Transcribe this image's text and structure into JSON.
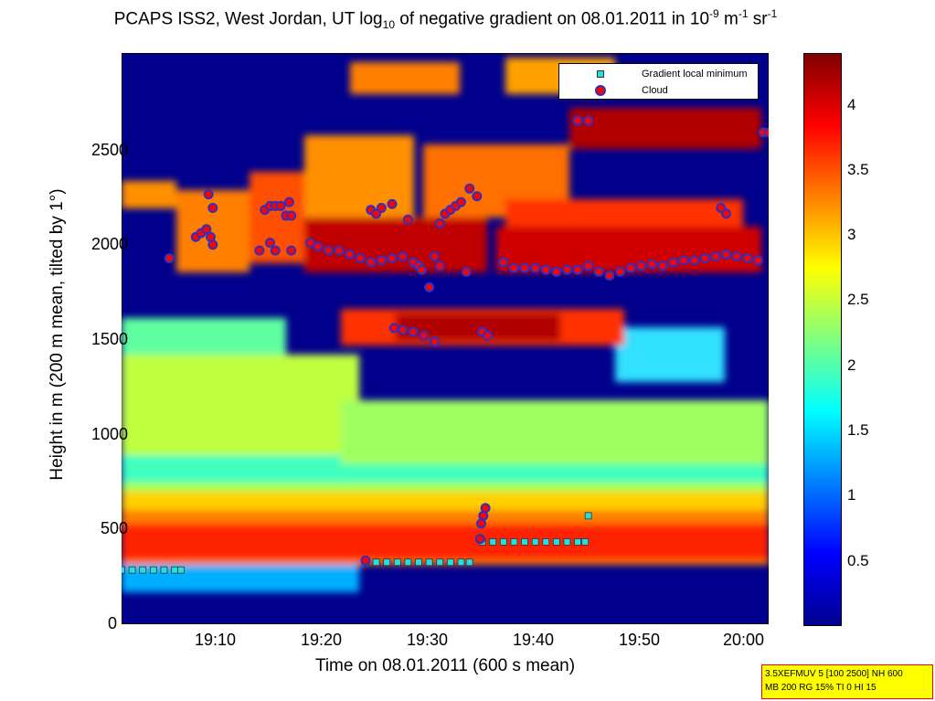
{
  "title": {
    "pre": "PCAPS ISS2, West Jordan, UT log",
    "sub": "10",
    "mid": " of negative gradient on 08.01.2011 in 10",
    "sup1": "-9",
    "unit1": " m",
    "sup2": "-1",
    "unit2": " sr",
    "sup3": "-1"
  },
  "info_box": {
    "line1": "3.5XEFMUV 5 [100 2500] NH 600",
    "line2": "MB 200 RG 15% TI 0 HI 15"
  },
  "colors": {
    "background_low": "#00008c",
    "gradient_minimum_marker": "#22e0e0",
    "cloud_marker_fill": "#ff0000",
    "cloud_marker_edge": "#3030c0"
  },
  "chart_data": {
    "type": "heatmap",
    "xlabel": "Time on 08.01.2011 (600 s mean)",
    "ylabel": "Height in m (200 m mean, tilted by 1°)",
    "x_ticks": [
      "19:10",
      "19:20",
      "19:30",
      "19:40",
      "19:50",
      "20:00"
    ],
    "x_tick_minutes": [
      10,
      20,
      30,
      40,
      50,
      60
    ],
    "xlim_minutes": [
      1.0,
      62.0
    ],
    "y_ticks": [
      0,
      500,
      1000,
      1500,
      2000,
      2500
    ],
    "ylim": [
      0,
      2950
    ],
    "colorbar": {
      "ticks": [
        "0.5",
        "1",
        "1.5",
        "2",
        "2.5",
        "3",
        "3.5",
        "4"
      ],
      "tick_values": [
        0.5,
        1,
        1.5,
        2,
        2.5,
        3,
        3.5,
        4
      ],
      "range": [
        0,
        4.4
      ],
      "colormap": "jet"
    },
    "grid": false,
    "legend_placement": "top-right",
    "legend": [
      "Gradient local minimum",
      "Cloud"
    ],
    "series": [
      {
        "name": "Gradient local minimum",
        "marker": "square",
        "points": [
          {
            "x": 1.0,
            "y": 280
          },
          {
            "x": 2.0,
            "y": 280
          },
          {
            "x": 3.0,
            "y": 280
          },
          {
            "x": 4.0,
            "y": 280
          },
          {
            "x": 5.0,
            "y": 280
          },
          {
            "x": 6.0,
            "y": 280
          },
          {
            "x": 6.6,
            "y": 280
          },
          {
            "x": 24.0,
            "y": 320
          },
          {
            "x": 25.0,
            "y": 320
          },
          {
            "x": 26.0,
            "y": 320
          },
          {
            "x": 27.0,
            "y": 320
          },
          {
            "x": 28.0,
            "y": 320
          },
          {
            "x": 29.0,
            "y": 320
          },
          {
            "x": 30.0,
            "y": 320
          },
          {
            "x": 31.0,
            "y": 320
          },
          {
            "x": 32.0,
            "y": 320
          },
          {
            "x": 33.0,
            "y": 320
          },
          {
            "x": 33.8,
            "y": 320
          },
          {
            "x": 35.0,
            "y": 425
          },
          {
            "x": 36.0,
            "y": 425
          },
          {
            "x": 37.0,
            "y": 425
          },
          {
            "x": 38.0,
            "y": 425
          },
          {
            "x": 39.0,
            "y": 425
          },
          {
            "x": 40.0,
            "y": 425
          },
          {
            "x": 41.0,
            "y": 425
          },
          {
            "x": 42.0,
            "y": 425
          },
          {
            "x": 43.0,
            "y": 425
          },
          {
            "x": 44.0,
            "y": 425
          },
          {
            "x": 44.7,
            "y": 425
          },
          {
            "x": 45.0,
            "y": 560
          }
        ]
      },
      {
        "name": "Cloud",
        "marker": "circle",
        "points": [
          {
            "x": 5.5,
            "y": 1890
          },
          {
            "x": 8.0,
            "y": 2000
          },
          {
            "x": 8.5,
            "y": 2020
          },
          {
            "x": 9.0,
            "y": 2040
          },
          {
            "x": 9.4,
            "y": 2000
          },
          {
            "x": 9.6,
            "y": 1960
          },
          {
            "x": 9.2,
            "y": 2220
          },
          {
            "x": 9.6,
            "y": 2150
          },
          {
            "x": 14.0,
            "y": 1930
          },
          {
            "x": 14.5,
            "y": 2140
          },
          {
            "x": 15.0,
            "y": 2160
          },
          {
            "x": 15.5,
            "y": 2160
          },
          {
            "x": 16.0,
            "y": 2160
          },
          {
            "x": 15.0,
            "y": 1970
          },
          {
            "x": 15.5,
            "y": 1930
          },
          {
            "x": 16.5,
            "y": 2110
          },
          {
            "x": 17.0,
            "y": 2110
          },
          {
            "x": 16.8,
            "y": 2180
          },
          {
            "x": 17.0,
            "y": 1930
          },
          {
            "x": 18.8,
            "y": 1970
          },
          {
            "x": 19.5,
            "y": 1950
          },
          {
            "x": 20.5,
            "y": 1930
          },
          {
            "x": 21.5,
            "y": 1930
          },
          {
            "x": 22.5,
            "y": 1910
          },
          {
            "x": 23.5,
            "y": 1890
          },
          {
            "x": 24.5,
            "y": 1870
          },
          {
            "x": 25.5,
            "y": 1880
          },
          {
            "x": 26.5,
            "y": 1890
          },
          {
            "x": 27.5,
            "y": 1900
          },
          {
            "x": 24.5,
            "y": 2140
          },
          {
            "x": 25.0,
            "y": 2120
          },
          {
            "x": 25.5,
            "y": 2150
          },
          {
            "x": 26.5,
            "y": 2170
          },
          {
            "x": 28.0,
            "y": 2090
          },
          {
            "x": 28.5,
            "y": 1870
          },
          {
            "x": 29.0,
            "y": 1850
          },
          {
            "x": 29.3,
            "y": 1830
          },
          {
            "x": 30.0,
            "y": 1740
          },
          {
            "x": 31.0,
            "y": 2070
          },
          {
            "x": 31.5,
            "y": 2120
          },
          {
            "x": 32.0,
            "y": 2140
          },
          {
            "x": 32.5,
            "y": 2160
          },
          {
            "x": 33.0,
            "y": 2180
          },
          {
            "x": 30.5,
            "y": 1900
          },
          {
            "x": 31.0,
            "y": 1850
          },
          {
            "x": 33.5,
            "y": 1820
          },
          {
            "x": 33.8,
            "y": 2250
          },
          {
            "x": 34.5,
            "y": 2210
          },
          {
            "x": 26.7,
            "y": 1530
          },
          {
            "x": 27.5,
            "y": 1520
          },
          {
            "x": 28.5,
            "y": 1510
          },
          {
            "x": 29.5,
            "y": 1490
          },
          {
            "x": 30.5,
            "y": 1460
          },
          {
            "x": 35.0,
            "y": 1510
          },
          {
            "x": 35.5,
            "y": 1490
          },
          {
            "x": 37.0,
            "y": 1870
          },
          {
            "x": 38.0,
            "y": 1840
          },
          {
            "x": 39.0,
            "y": 1840
          },
          {
            "x": 40.0,
            "y": 1840
          },
          {
            "x": 41.0,
            "y": 1830
          },
          {
            "x": 42.0,
            "y": 1820
          },
          {
            "x": 43.0,
            "y": 1830
          },
          {
            "x": 44.0,
            "y": 1830
          },
          {
            "x": 45.0,
            "y": 1850
          },
          {
            "x": 46.0,
            "y": 1820
          },
          {
            "x": 47.0,
            "y": 1800
          },
          {
            "x": 48.0,
            "y": 1820
          },
          {
            "x": 49.0,
            "y": 1840
          },
          {
            "x": 50.0,
            "y": 1850
          },
          {
            "x": 51.0,
            "y": 1860
          },
          {
            "x": 52.0,
            "y": 1850
          },
          {
            "x": 53.0,
            "y": 1870
          },
          {
            "x": 54.0,
            "y": 1880
          },
          {
            "x": 55.0,
            "y": 1880
          },
          {
            "x": 56.0,
            "y": 1890
          },
          {
            "x": 57.0,
            "y": 1900
          },
          {
            "x": 58.0,
            "y": 1910
          },
          {
            "x": 59.0,
            "y": 1900
          },
          {
            "x": 60.0,
            "y": 1890
          },
          {
            "x": 61.0,
            "y": 1880
          },
          {
            "x": 57.5,
            "y": 2150
          },
          {
            "x": 58.0,
            "y": 2120
          },
          {
            "x": 44.0,
            "y": 2600
          },
          {
            "x": 45.0,
            "y": 2600
          },
          {
            "x": 61.5,
            "y": 2540
          },
          {
            "x": 62.0,
            "y": 2540
          },
          {
            "x": 24.0,
            "y": 330
          },
          {
            "x": 35.3,
            "y": 600
          },
          {
            "x": 35.1,
            "y": 560
          },
          {
            "x": 34.9,
            "y": 520
          },
          {
            "x": 34.8,
            "y": 440
          }
        ]
      }
    ]
  }
}
